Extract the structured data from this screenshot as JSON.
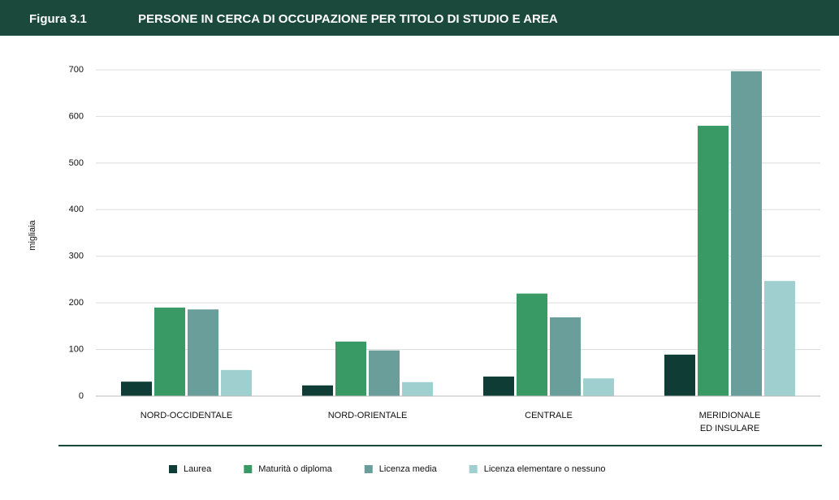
{
  "chart_data": {
    "type": "bar",
    "figure_label": "Figura 3.1",
    "title": "PERSONE IN CERCA DI OCCUPAZIONE PER TITOLO DI STUDIO E AREA",
    "y_label": "migliaia",
    "categories": [
      "NORD-OCCIDENTALE",
      "NORD-ORIENTALE",
      "CENTRALE",
      "MERIDIONALE\nED INSULARE"
    ],
    "series": [
      {
        "name": "Laurea",
        "color": "#0f3d35",
        "values": [
          31,
          23,
          42,
          89
        ]
      },
      {
        "name": "Maturità o diploma",
        "color": "#3a9a66",
        "values": [
          190,
          117,
          220,
          580
        ]
      },
      {
        "name": "Licenza media",
        "color": "#6a9e9b",
        "values": [
          186,
          98,
          169,
          697
        ]
      },
      {
        "name": "Licenza elementare o nessuno",
        "color": "#9fd0cf",
        "values": [
          56,
          30,
          38,
          247
        ]
      }
    ],
    "ylim": [
      0,
      700
    ],
    "yticks": [
      0,
      100,
      200,
      300,
      400,
      500,
      600,
      700
    ],
    "grid": true,
    "legend": "bottom"
  }
}
